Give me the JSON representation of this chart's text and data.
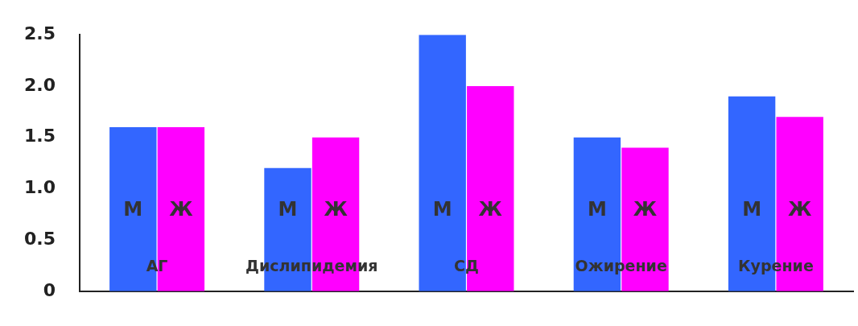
{
  "chart_data": {
    "type": "bar",
    "categories": [
      "АГ",
      "Дислипидемия",
      "СД",
      "Ожирение",
      "Курение"
    ],
    "series": [
      {
        "name": "М",
        "color": "#3366ff",
        "values": [
          1.6,
          1.2,
          2.5,
          1.5,
          1.9
        ]
      },
      {
        "name": "Ж",
        "color": "#ff00ff",
        "values": [
          1.6,
          1.5,
          2.0,
          1.4,
          1.7
        ]
      }
    ],
    "ylim": [
      0,
      2.5
    ],
    "yticks": [
      0,
      0.5,
      {
        "value": 1,
        "label": "1.0"
      },
      1.5,
      {
        "value": 2,
        "label": "2.0"
      },
      2.5
    ],
    "grid": false,
    "legend": false
  }
}
